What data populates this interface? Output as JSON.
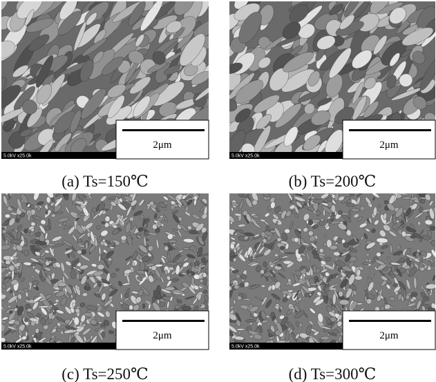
{
  "figure": {
    "panels": [
      {
        "caption": "(a) Ts=150℃",
        "scale_label": "2μm",
        "info": "5.0kV x25.0k"
      },
      {
        "caption": "(b) Ts=200℃",
        "scale_label": "2μm",
        "info": "5.0kV x25.0k"
      },
      {
        "caption": "(c) Ts=250℃",
        "scale_label": "2μm",
        "info": "5.0kV x25.0k"
      },
      {
        "caption": "(d) Ts=300℃",
        "scale_label": "2μm",
        "info": "5.0kV x25.0k"
      }
    ]
  }
}
